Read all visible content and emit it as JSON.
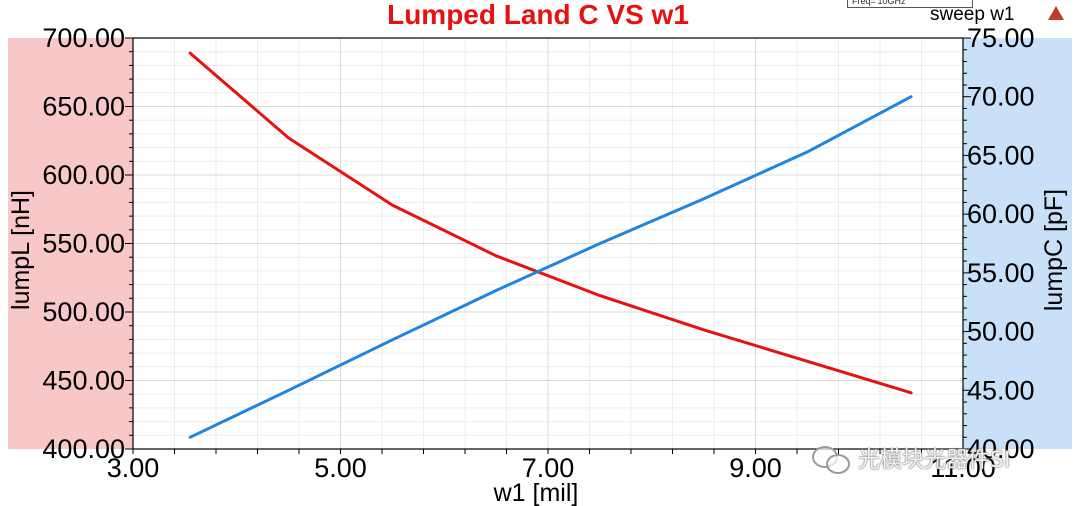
{
  "colors": {
    "left_band": "#f8c8c8",
    "right_band": "#c8e0f8",
    "lumpL": "#e8110f",
    "lumpC": "#1f86e0",
    "title": "#e8110f",
    "grid": "#d9d9d9"
  },
  "header": {
    "legend_text": "Freq='10GHz'",
    "sweep_label": "sweep w1"
  },
  "watermark": {
    "text": "光模块光器件SI"
  },
  "chart_data": {
    "type": "line",
    "title": "Lumped Land C VS w1",
    "xlabel": "w1 [mil]",
    "ylabel": "lumpL [nH]",
    "y2label": "lumpC [pF]",
    "xlim": [
      3.0,
      11.0
    ],
    "ylim": [
      400.0,
      700.0
    ],
    "y2lim": [
      40.0,
      75.0
    ],
    "xticks": [
      "3.00",
      "5.00",
      "7.00",
      "9.00",
      "11.00"
    ],
    "yticks": [
      "400.00",
      "450.00",
      "500.00",
      "550.00",
      "600.00",
      "650.00",
      "700.00"
    ],
    "y2ticks": [
      "40.00",
      "45.00",
      "50.00",
      "55.00",
      "60.00",
      "65.00",
      "70.00",
      "75.00"
    ],
    "grid": true,
    "series": [
      {
        "name": "lumpL",
        "axis": "left",
        "x": [
          3.55,
          4.5,
          5.5,
          6.5,
          7.5,
          8.5,
          9.5,
          10.5
        ],
        "values": [
          689,
          627,
          578,
          541,
          512,
          487,
          464,
          441
        ]
      },
      {
        "name": "lumpC",
        "axis": "right",
        "x": [
          3.55,
          4.5,
          5.5,
          6.5,
          7.5,
          8.5,
          9.5,
          10.5
        ],
        "values": [
          41.0,
          45.0,
          49.3,
          53.5,
          57.5,
          61.3,
          65.3,
          70.0
        ]
      }
    ]
  }
}
